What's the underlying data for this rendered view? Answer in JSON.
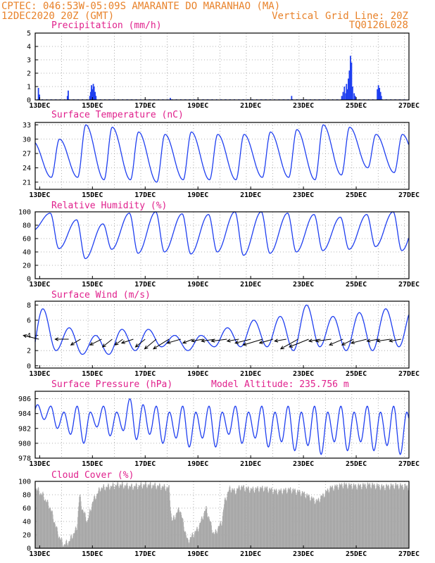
{
  "header": {
    "line1_left": "CPTEC:  046:53W-05:09S  AMARANTE DO MARANHAO (MA)",
    "line2_left": "12DEC2020 20Z (GMT)",
    "line2_right": "Vertical Grid Line: 20Z",
    "line3_right": "TQ0126L028"
  },
  "colors": {
    "header": "#e8822a",
    "title": "#e0208c",
    "series": "#1f3ff0",
    "cloud": "#a8a8a8",
    "axis": "#000000",
    "grid": "#9a9a9a"
  },
  "x_axis": {
    "labels": [
      "13DEC",
      "15DEC",
      "17DEC",
      "19DEC",
      "21DEC",
      "23DEC",
      "25DEC",
      "27DEC"
    ]
  },
  "chart_data": [
    {
      "id": "precip",
      "type": "bar",
      "title": "Precipitation (mm/h)",
      "ylim": [
        0,
        5
      ],
      "yticks": [
        0,
        1,
        2,
        3,
        4,
        5
      ],
      "grid": true,
      "xlabel": "",
      "ylabel": "",
      "x_unit": "day of Dec 2020",
      "x_range": [
        12.83,
        27.0
      ],
      "x": [
        12.95,
        12.99,
        14.05,
        14.08,
        14.9,
        14.93,
        14.96,
        15.0,
        15.03,
        15.06,
        15.1,
        15.13,
        17.95,
        22.55,
        24.45,
        24.5,
        24.55,
        24.6,
        24.63,
        24.66,
        24.7,
        24.74,
        24.78,
        24.82,
        24.86,
        24.92,
        24.96,
        25.8,
        25.84,
        25.88,
        25.92,
        25.95
      ],
      "values": [
        0.9,
        0.4,
        0.3,
        0.7,
        0.3,
        0.6,
        1.1,
        0.8,
        1.2,
        1.0,
        0.6,
        0.3,
        0.15,
        0.3,
        0.3,
        0.6,
        1.0,
        0.5,
        1.2,
        0.8,
        1.6,
        2.2,
        3.3,
        2.8,
        1.0,
        0.5,
        0.3,
        0.8,
        1.1,
        0.9,
        0.6,
        0.3
      ],
      "baseline_noise": 0.05
    },
    {
      "id": "temp",
      "type": "line",
      "title": "Surface Temperature (nC)",
      "ylim": [
        19.5,
        33.5
      ],
      "yticks": [
        21,
        24,
        27,
        30,
        33
      ],
      "grid": true,
      "xlabel": "",
      "ylabel": "",
      "x_unit": "day of Dec 2020",
      "x_range": [
        12.83,
        27.0
      ],
      "diurnal": {
        "max_hour": 0.75,
        "min_hour": 0.44,
        "maxima": [
          29.5,
          30.0,
          33.0,
          32.5,
          31.5,
          31.0,
          31.5,
          31.0,
          31.0,
          31.5,
          32.0,
          33.0,
          32.5,
          31.0,
          31.0
        ],
        "minima": [
          21.0,
          22.0,
          22.0,
          21.5,
          21.5,
          21.0,
          21.5,
          21.5,
          21.5,
          22.0,
          22.0,
          21.5,
          22.5,
          24.0,
          23.0
        ]
      }
    },
    {
      "id": "rh",
      "type": "line",
      "title": "Relative Humidity (%)",
      "ylim": [
        0,
        100
      ],
      "yticks": [
        0,
        20,
        40,
        60,
        80,
        100
      ],
      "grid": true,
      "xlabel": "",
      "ylabel": "",
      "x_unit": "day of Dec 2020",
      "x_range": [
        12.83,
        27.0
      ],
      "diurnal": {
        "max_hour": 0.4,
        "min_hour": 0.73,
        "maxima": [
          100,
          98,
          88,
          82,
          98,
          100,
          97,
          96,
          100,
          100,
          98,
          96,
          92,
          96,
          100
        ],
        "minima": [
          72,
          45,
          30,
          44,
          38,
          40,
          37,
          40,
          35,
          38,
          40,
          42,
          44,
          48,
          42
        ]
      }
    },
    {
      "id": "wind",
      "type": "line",
      "title": "Surface Wind (m/s)",
      "ylim": [
        -0.3,
        8.5
      ],
      "yticks": [
        0,
        2,
        4,
        6,
        8
      ],
      "grid": true,
      "xlabel": "",
      "ylabel": "",
      "x_unit": "day of Dec 2020",
      "x_range": [
        12.83,
        27.0
      ],
      "diurnal": {
        "max_hour": 0.12,
        "min_hour": 0.62,
        "maxima": [
          4.2,
          7.5,
          5.0,
          4.0,
          4.8,
          4.8,
          4.0,
          4.0,
          5.0,
          6.0,
          6.5,
          8.0,
          6.5,
          7.0,
          7.5
        ],
        "minima": [
          0.5,
          2.0,
          1.5,
          1.5,
          2.0,
          2.5,
          2.0,
          2.5,
          2.5,
          2.5,
          2.0,
          2.5,
          2.0,
          2.0,
          2.5
        ]
      },
      "vectors": {
        "x": [
          12.97,
          14.1,
          14.55,
          15.35,
          15.75,
          16.15,
          16.55,
          17.0,
          17.42,
          17.9,
          18.35,
          18.8,
          19.2,
          19.65,
          20.1,
          20.55,
          21.0,
          21.45,
          21.85,
          22.35,
          22.8,
          23.2,
          23.65,
          24.05,
          24.5,
          24.9,
          25.4,
          25.85,
          26.3,
          26.7
        ],
        "u": [
          -4.0,
          -3.5,
          -2.5,
          -3.0,
          -2.5,
          -2.0,
          -3.0,
          -2.5,
          -3.0,
          -4.0,
          -3.5,
          -2.5,
          -3.0,
          -3.5,
          -4.0,
          -3.0,
          -4.0,
          -5.0,
          -3.5,
          -3.0,
          -4.5,
          -5.0,
          -3.0,
          -4.0,
          -3.5,
          -3.0,
          -4.0,
          -3.0,
          -3.5,
          -3.0
        ],
        "v": [
          1.0,
          0.0,
          -1.5,
          -1.5,
          -2.0,
          -1.5,
          -1.0,
          -2.0,
          -2.5,
          -2.5,
          -1.0,
          -1.0,
          -0.5,
          -0.5,
          -0.5,
          -0.5,
          -1.0,
          -1.5,
          -1.0,
          -0.5,
          -2.5,
          -2.0,
          -0.5,
          -0.5,
          -1.5,
          -1.5,
          -1.0,
          -0.5,
          -0.5,
          -0.5
        ]
      }
    },
    {
      "id": "press",
      "type": "line",
      "title": "Surface Pressure (hPa)",
      "subtitle": "Model Altitude: 235.756 m",
      "ylim": [
        978,
        987
      ],
      "yticks": [
        978,
        980,
        982,
        984,
        986
      ],
      "grid": true,
      "xlabel": "",
      "ylabel": "",
      "x_unit": "day of Dec 2020",
      "x_range": [
        12.83,
        27.0
      ],
      "semidiurnal": {
        "peak_hours": [
          0.42,
          0.92
        ],
        "trough_hours": [
          0.17,
          0.67
        ],
        "peaks": [
          986.0,
          985.0,
          985.0,
          985.0,
          986.0,
          985.0,
          985.0,
          985.0,
          985.0,
          985.0,
          985.0,
          985.0,
          985.0,
          985.0,
          985.0
        ],
        "troughs": [
          983.0,
          982.0,
          980.0,
          981.0,
          980.5,
          980.0,
          979.5,
          979.5,
          980.0,
          979.5,
          979.0,
          978.5,
          979.0,
          979.0,
          978.5
        ]
      }
    },
    {
      "id": "cloud",
      "type": "bar",
      "title": "Cloud Cover (%)",
      "ylim": [
        0,
        100
      ],
      "yticks": [
        0,
        20,
        40,
        60,
        80,
        100
      ],
      "grid": true,
      "xlabel": "",
      "ylabel": "",
      "x_unit": "day of Dec 2020",
      "x_range": [
        12.83,
        27.0
      ],
      "envelope": {
        "x": [
          12.83,
          13.1,
          13.4,
          13.7,
          13.9,
          14.1,
          14.4,
          14.5,
          14.6,
          14.8,
          15.0,
          15.3,
          15.6,
          16.0,
          16.5,
          17.0,
          17.5,
          17.9,
          18.0,
          18.3,
          18.6,
          19.0,
          19.3,
          19.6,
          19.9,
          20.0,
          20.2,
          20.4,
          20.6,
          21.0,
          21.5,
          22.0,
          22.5,
          23.0,
          23.5,
          24.0,
          24.5,
          25.0,
          25.5,
          26.0,
          26.5,
          27.0
        ],
        "values": [
          90,
          80,
          60,
          20,
          5,
          10,
          30,
          80,
          60,
          40,
          70,
          90,
          92,
          95,
          92,
          95,
          93,
          90,
          40,
          60,
          10,
          30,
          60,
          20,
          40,
          70,
          90,
          85,
          92,
          88,
          90,
          85,
          88,
          82,
          70,
          90,
          95,
          93,
          95,
          92,
          94,
          92
        ]
      }
    }
  ]
}
